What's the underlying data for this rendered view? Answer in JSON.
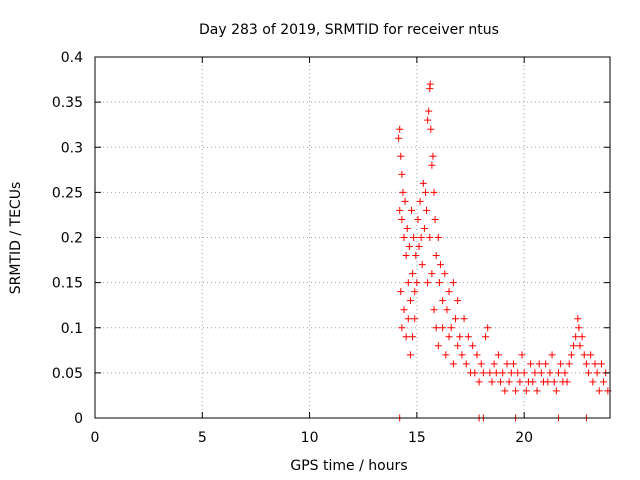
{
  "chart_data": {
    "type": "scatter",
    "title": "Day 283 of 2019, SRMTID for receiver ntus",
    "xlabel": "GPS time / hours",
    "ylabel": "SRMTID / TECUs",
    "xlim": [
      0,
      24
    ],
    "ylim": [
      0,
      0.4
    ],
    "xticks": [
      0,
      5,
      10,
      15,
      20
    ],
    "xtick_labels": [
      "0",
      "5",
      "10",
      "15",
      "20"
    ],
    "yticks": [
      0,
      0.05,
      0.1,
      0.15,
      0.2,
      0.25,
      0.3,
      0.35,
      0.4
    ],
    "ytick_labels": [
      "0",
      "0.05",
      "0.1",
      "0.15",
      "0.2",
      "0.25",
      "0.3",
      "0.35",
      "0.4"
    ],
    "grid": true,
    "legend": "none",
    "marker": "plus",
    "series_color": "#ff0000",
    "points": [
      [
        14.15,
        0.31
      ],
      [
        14.2,
        0.32
      ],
      [
        14.2,
        0.23
      ],
      [
        14.25,
        0.29
      ],
      [
        14.3,
        0.27
      ],
      [
        14.3,
        0.22
      ],
      [
        14.35,
        0.25
      ],
      [
        14.4,
        0.2
      ],
      [
        14.45,
        0.24
      ],
      [
        14.5,
        0.18
      ],
      [
        14.55,
        0.21
      ],
      [
        14.6,
        0.15
      ],
      [
        14.65,
        0.19
      ],
      [
        14.7,
        0.13
      ],
      [
        14.75,
        0.23
      ],
      [
        14.8,
        0.16
      ],
      [
        14.85,
        0.2
      ],
      [
        14.9,
        0.14
      ],
      [
        14.95,
        0.18
      ],
      [
        14.25,
        0.14
      ],
      [
        14.3,
        0.1
      ],
      [
        14.4,
        0.12
      ],
      [
        14.5,
        0.09
      ],
      [
        14.6,
        0.11
      ],
      [
        14.7,
        0.07
      ],
      [
        14.8,
        0.09
      ],
      [
        14.9,
        0.11
      ],
      [
        15.0,
        0.15
      ],
      [
        15.05,
        0.22
      ],
      [
        15.1,
        0.19
      ],
      [
        15.15,
        0.24
      ],
      [
        15.2,
        0.2
      ],
      [
        15.25,
        0.17
      ],
      [
        15.3,
        0.26
      ],
      [
        15.35,
        0.21
      ],
      [
        15.4,
        0.25
      ],
      [
        15.45,
        0.23
      ],
      [
        15.5,
        0.33
      ],
      [
        15.55,
        0.34
      ],
      [
        15.6,
        0.365
      ],
      [
        15.62,
        0.37
      ],
      [
        15.65,
        0.32
      ],
      [
        15.7,
        0.28
      ],
      [
        15.75,
        0.29
      ],
      [
        15.8,
        0.25
      ],
      [
        15.5,
        0.15
      ],
      [
        15.6,
        0.2
      ],
      [
        15.7,
        0.16
      ],
      [
        15.85,
        0.22
      ],
      [
        15.9,
        0.18
      ],
      [
        16.0,
        0.2
      ],
      [
        16.05,
        0.15
      ],
      [
        16.1,
        0.17
      ],
      [
        16.2,
        0.13
      ],
      [
        16.3,
        0.16
      ],
      [
        16.4,
        0.12
      ],
      [
        16.5,
        0.14
      ],
      [
        16.6,
        0.1
      ],
      [
        16.7,
        0.15
      ],
      [
        16.8,
        0.11
      ],
      [
        16.9,
        0.13
      ],
      [
        17.0,
        0.09
      ],
      [
        15.8,
        0.12
      ],
      [
        15.9,
        0.1
      ],
      [
        16.0,
        0.08
      ],
      [
        16.2,
        0.1
      ],
      [
        16.35,
        0.07
      ],
      [
        16.5,
        0.09
      ],
      [
        16.7,
        0.06
      ],
      [
        16.9,
        0.08
      ],
      [
        17.1,
        0.07
      ],
      [
        17.2,
        0.11
      ],
      [
        17.3,
        0.06
      ],
      [
        17.4,
        0.09
      ],
      [
        17.5,
        0.05
      ],
      [
        17.6,
        0.08
      ],
      [
        17.7,
        0.05
      ],
      [
        17.8,
        0.07
      ],
      [
        17.9,
        0.04
      ],
      [
        18.0,
        0.06
      ],
      [
        18.1,
        0.05
      ],
      [
        18.2,
        0.09
      ],
      [
        18.3,
        0.1
      ],
      [
        18.4,
        0.05
      ],
      [
        18.5,
        0.04
      ],
      [
        18.6,
        0.06
      ],
      [
        18.7,
        0.05
      ],
      [
        18.8,
        0.07
      ],
      [
        18.9,
        0.04
      ],
      [
        19.0,
        0.05
      ],
      [
        19.1,
        0.03
      ],
      [
        19.2,
        0.06
      ],
      [
        19.3,
        0.04
      ],
      [
        19.4,
        0.05
      ],
      [
        19.5,
        0.06
      ],
      [
        19.6,
        0.03
      ],
      [
        19.7,
        0.05
      ],
      [
        19.8,
        0.04
      ],
      [
        19.9,
        0.07
      ],
      [
        20.0,
        0.05
      ],
      [
        20.1,
        0.03
      ],
      [
        20.2,
        0.04
      ],
      [
        20.3,
        0.06
      ],
      [
        20.4,
        0.04
      ],
      [
        20.5,
        0.05
      ],
      [
        20.6,
        0.03
      ],
      [
        20.7,
        0.06
      ],
      [
        20.8,
        0.05
      ],
      [
        20.9,
        0.04
      ],
      [
        21.0,
        0.06
      ],
      [
        21.1,
        0.04
      ],
      [
        21.2,
        0.05
      ],
      [
        21.3,
        0.07
      ],
      [
        21.4,
        0.04
      ],
      [
        21.5,
        0.03
      ],
      [
        21.6,
        0.05
      ],
      [
        21.7,
        0.06
      ],
      [
        21.8,
        0.04
      ],
      [
        21.9,
        0.05
      ],
      [
        22.0,
        0.04
      ],
      [
        22.1,
        0.06
      ],
      [
        22.2,
        0.07
      ],
      [
        22.3,
        0.08
      ],
      [
        22.4,
        0.09
      ],
      [
        22.5,
        0.11
      ],
      [
        22.55,
        0.1
      ],
      [
        22.6,
        0.08
      ],
      [
        22.7,
        0.09
      ],
      [
        22.8,
        0.07
      ],
      [
        22.9,
        0.06
      ],
      [
        23.0,
        0.05
      ],
      [
        23.1,
        0.07
      ],
      [
        23.2,
        0.04
      ],
      [
        23.3,
        0.06
      ],
      [
        23.4,
        0.05
      ],
      [
        23.5,
        0.03
      ],
      [
        23.6,
        0.06
      ],
      [
        23.7,
        0.04
      ],
      [
        23.8,
        0.05
      ],
      [
        23.9,
        0.03
      ],
      [
        14.2,
        0.0
      ],
      [
        17.9,
        0.0
      ],
      [
        18.1,
        0.0
      ],
      [
        19.6,
        0.0
      ],
      [
        21.6,
        0.0
      ],
      [
        22.9,
        0.0
      ]
    ]
  }
}
